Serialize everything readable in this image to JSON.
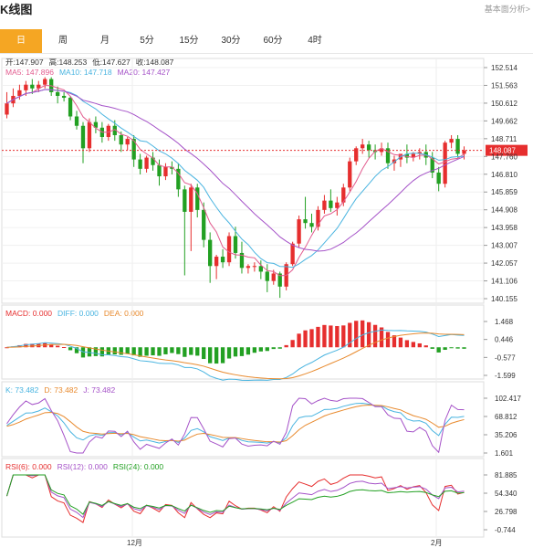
{
  "header": {
    "title": "K线图",
    "link": "基本面分析>"
  },
  "tabs": [
    {
      "label": "日",
      "active": true
    },
    {
      "label": "周"
    },
    {
      "label": "月"
    },
    {
      "label": "5分"
    },
    {
      "label": "15分"
    },
    {
      "label": "30分"
    },
    {
      "label": "60分"
    },
    {
      "label": "4时"
    }
  ],
  "ohlc": {
    "open_label": "开:147.907",
    "high_label": "高:148.253",
    "low_label": "低:147.627",
    "close_label": "收:148.087"
  },
  "ma": {
    "ma5": "MA5: 147.896",
    "ma10": "MA10: 147.718",
    "ma20": "MA20: 147.427"
  },
  "macd_legend": {
    "macd": "MACD: 0.000",
    "diff": "DIFF: 0.000",
    "dea": "DEA: 0.000"
  },
  "kdj_legend": {
    "k": "K: 73.482",
    "d": "D: 73.482",
    "j": "J: 73.482"
  },
  "rsi_legend": {
    "r6": "RSI(6): 0.000",
    "r12": "RSI(12): 0.000",
    "r24": "RSI(24): 0.000"
  },
  "price_badge": "148.087",
  "colors": {
    "up": "#e62e2e",
    "down": "#22a022",
    "ma5": "#e25b8e",
    "ma10": "#49b4e0",
    "ma20": "#a552c8",
    "accent": "#f5a623"
  },
  "axes": {
    "price_ticks": [
      "152.514",
      "151.563",
      "150.612",
      "149.662",
      "148.711",
      "147.760",
      "146.810",
      "145.859",
      "144.908",
      "143.958",
      "143.007",
      "142.057",
      "141.106",
      "140.155"
    ],
    "macd_ticks": [
      "1.468",
      "0.446",
      "-0.577",
      "-1.599"
    ],
    "kdj_ticks": [
      "102.417",
      "68.812",
      "35.206",
      "1.601"
    ],
    "rsi_ticks": [
      "81.885",
      "54.340",
      "26.798",
      "-0.744"
    ],
    "x_labels": [
      "12月",
      "2月"
    ]
  },
  "chart_data": {
    "type": "candlestick",
    "price_range": [
      140.155,
      152.514
    ],
    "candles": [
      [
        150.0,
        151.2,
        150.6,
        149.8
      ],
      [
        150.6,
        151.4,
        151.0,
        150.4
      ],
      [
        151.0,
        151.6,
        151.3,
        150.8
      ],
      [
        151.3,
        151.8,
        151.6,
        151.0
      ],
      [
        151.6,
        151.9,
        151.4,
        151.1
      ],
      [
        151.4,
        151.8,
        151.6,
        151.2
      ],
      [
        151.6,
        152.0,
        151.9,
        151.4
      ],
      [
        151.9,
        152.0,
        151.2,
        151.0
      ],
      [
        151.2,
        151.5,
        151.0,
        150.6
      ],
      [
        151.0,
        151.2,
        150.9,
        150.7
      ],
      [
        150.9,
        151.0,
        149.9,
        149.7
      ],
      [
        149.9,
        150.2,
        149.4,
        149.2
      ],
      [
        149.4,
        149.6,
        148.2,
        147.4
      ],
      [
        148.2,
        149.8,
        149.6,
        148.0
      ],
      [
        149.6,
        149.9,
        149.3,
        149.0
      ],
      [
        149.3,
        149.6,
        148.8,
        148.5
      ],
      [
        148.8,
        149.5,
        149.4,
        148.6
      ],
      [
        149.4,
        149.7,
        148.9,
        148.6
      ],
      [
        148.9,
        149.1,
        148.4,
        148.0
      ],
      [
        148.4,
        148.8,
        148.7,
        148.1
      ],
      [
        148.7,
        148.9,
        147.6,
        147.2
      ],
      [
        147.6,
        147.9,
        147.1,
        146.8
      ],
      [
        147.1,
        147.8,
        147.7,
        146.9
      ],
      [
        147.7,
        148.0,
        147.3,
        147.0
      ],
      [
        147.3,
        147.6,
        146.7,
        146.2
      ],
      [
        146.7,
        147.4,
        147.2,
        146.5
      ],
      [
        147.2,
        147.5,
        147.1,
        146.8
      ],
      [
        147.1,
        147.4,
        146.0,
        145.6
      ],
      [
        146.0,
        146.2,
        144.8,
        141.4
      ],
      [
        144.8,
        146.3,
        146.1,
        142.7
      ],
      [
        146.1,
        146.3,
        144.9,
        144.5
      ],
      [
        144.9,
        145.3,
        143.3,
        142.9
      ],
      [
        143.3,
        143.7,
        141.9,
        141.0
      ],
      [
        141.9,
        142.5,
        142.4,
        141.2
      ],
      [
        142.4,
        142.8,
        142.1,
        141.8
      ],
      [
        142.1,
        143.7,
        143.5,
        141.9
      ],
      [
        143.5,
        144.0,
        142.6,
        142.3
      ],
      [
        142.6,
        143.2,
        141.8,
        141.5
      ],
      [
        141.8,
        142.0,
        141.9,
        141.5
      ],
      [
        141.9,
        142.1,
        141.9,
        141.6
      ],
      [
        141.9,
        142.2,
        141.6,
        141.2
      ],
      [
        141.6,
        142.0,
        141.1,
        140.5
      ],
      [
        141.1,
        141.7,
        141.5,
        140.9
      ],
      [
        141.5,
        141.6,
        140.8,
        140.2
      ],
      [
        140.8,
        142.1,
        142.0,
        140.6
      ],
      [
        142.0,
        143.2,
        143.1,
        141.9
      ],
      [
        143.1,
        144.6,
        144.4,
        142.9
      ],
      [
        144.4,
        145.6,
        144.2,
        143.9
      ],
      [
        144.2,
        144.7,
        144.0,
        143.7
      ],
      [
        144.0,
        145.1,
        144.9,
        143.8
      ],
      [
        144.9,
        145.7,
        145.4,
        144.7
      ],
      [
        145.4,
        146.0,
        145.0,
        144.8
      ],
      [
        145.0,
        145.6,
        145.3,
        144.6
      ],
      [
        145.3,
        146.3,
        146.1,
        145.1
      ],
      [
        146.1,
        147.7,
        147.5,
        145.9
      ],
      [
        147.5,
        148.3,
        148.2,
        147.3
      ],
      [
        148.2,
        148.7,
        148.4,
        147.9
      ],
      [
        148.4,
        148.6,
        148.1,
        147.7
      ],
      [
        148.1,
        148.4,
        148.0,
        147.6
      ],
      [
        148.0,
        148.5,
        148.2,
        147.8
      ],
      [
        148.2,
        148.5,
        147.4,
        147.1
      ],
      [
        147.4,
        147.8,
        147.6,
        147.0
      ],
      [
        147.6,
        147.9,
        147.9,
        147.2
      ],
      [
        147.9,
        148.4,
        147.7,
        147.4
      ],
      [
        147.7,
        148.0,
        147.9,
        147.5
      ],
      [
        147.9,
        148.2,
        148.0,
        147.6
      ],
      [
        148.0,
        148.4,
        147.7,
        147.3
      ],
      [
        147.7,
        148.0,
        146.9,
        146.6
      ],
      [
        146.9,
        147.2,
        146.3,
        145.9
      ],
      [
        146.3,
        148.6,
        148.5,
        146.1
      ],
      [
        148.5,
        148.9,
        148.7,
        148.2
      ],
      [
        148.7,
        148.9,
        147.9,
        147.7
      ],
      [
        147.9,
        148.3,
        148.087,
        147.6
      ]
    ]
  }
}
